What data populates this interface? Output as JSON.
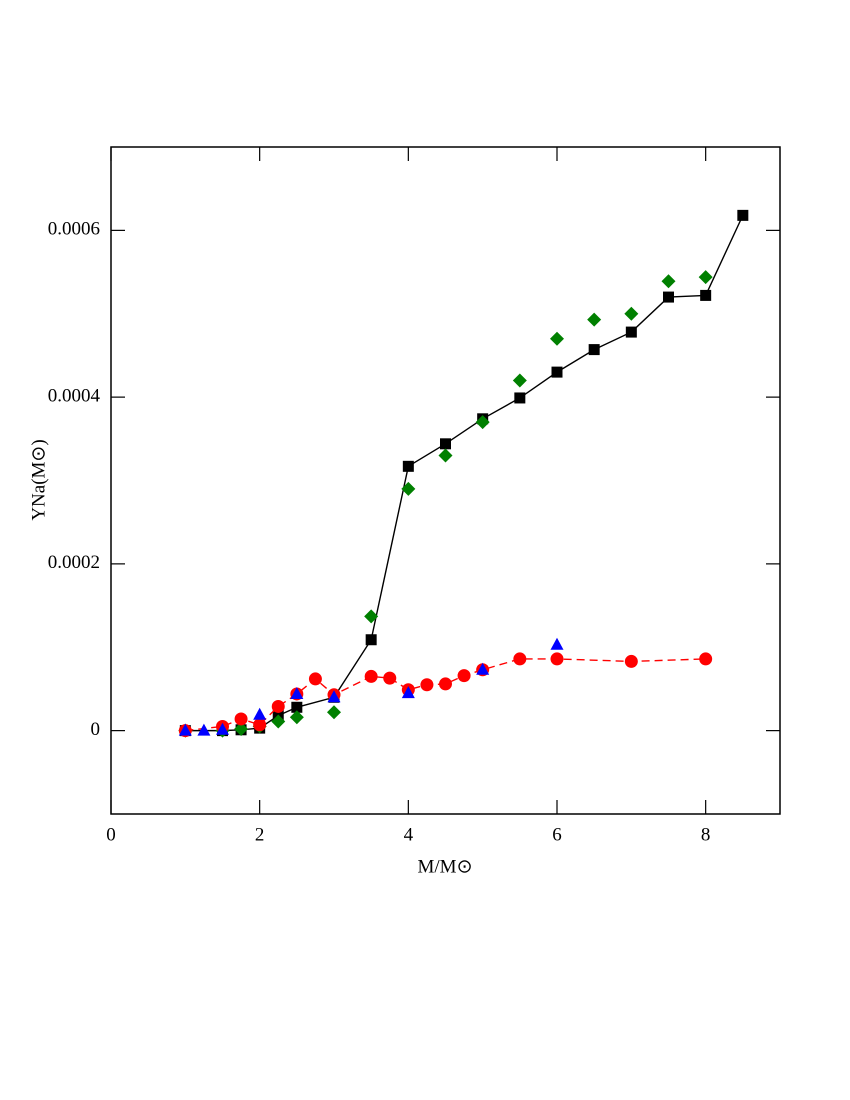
{
  "chart_data": {
    "type": "scatter",
    "xlabel": "M/M⊙",
    "ylabel": "YNa(M⊙)",
    "xlim": [
      0,
      9
    ],
    "ylim": [
      -0.0001,
      0.0007
    ],
    "xticks": [
      0,
      2,
      4,
      6,
      8
    ],
    "yticks": [
      0,
      0.0002,
      0.0004,
      0.0006
    ],
    "series": [
      {
        "color": "#000000",
        "marker": "square",
        "line": "solid",
        "x": [
          1,
          1.5,
          1.75,
          2,
          2.25,
          2.5,
          3,
          3.5,
          4,
          4.5,
          5,
          5.5,
          6,
          6.5,
          7,
          7.5,
          8,
          8.5
        ],
        "values": [
          0,
          0,
          1e-06,
          3e-06,
          1.8e-05,
          2.8e-05,
          4e-05,
          0.000109,
          0.000317,
          0.000344,
          0.000374,
          0.000399,
          0.00043,
          0.000457,
          0.000478,
          0.00052,
          0.000522,
          0.000618
        ]
      },
      {
        "color": "#008000",
        "marker": "diamond",
        "line": "none",
        "x": [
          1,
          1.5,
          1.75,
          2,
          2.25,
          2.5,
          3,
          3.5,
          4,
          4.5,
          5,
          5.5,
          6,
          6.5,
          7,
          7.5,
          8
        ],
        "values": [
          0,
          0,
          2e-06,
          5e-06,
          1.1e-05,
          1.6e-05,
          2.2e-05,
          0.000137,
          0.00029,
          0.00033,
          0.00037,
          0.00042,
          0.00047,
          0.000493,
          0.0005,
          0.000539,
          0.000544
        ]
      },
      {
        "color": "#ff0000",
        "marker": "circle",
        "line": "dashed",
        "x": [
          1,
          1.5,
          1.75,
          2,
          2.25,
          2.5,
          2.75,
          3,
          3.5,
          3.75,
          4,
          4.25,
          4.5,
          4.75,
          5,
          5.5,
          6,
          7,
          8
        ],
        "values": [
          0,
          5e-06,
          1.4e-05,
          7e-06,
          2.9e-05,
          4.4e-05,
          6.2e-05,
          4.3e-05,
          6.5e-05,
          6.3e-05,
          4.9e-05,
          5.5e-05,
          5.6e-05,
          6.6e-05,
          7.3e-05,
          8.6e-05,
          8.6e-05,
          8.3e-05,
          8.6e-05
        ]
      },
      {
        "color": "#0000ff",
        "marker": "triangle",
        "line": "none",
        "x": [
          1,
          1.25,
          1.5,
          2,
          2.5,
          3,
          4,
          5,
          6
        ],
        "values": [
          0,
          0,
          1e-06,
          1.9e-05,
          4.4e-05,
          4e-05,
          4.5e-05,
          7.3e-05,
          0.000103
        ]
      }
    ]
  }
}
